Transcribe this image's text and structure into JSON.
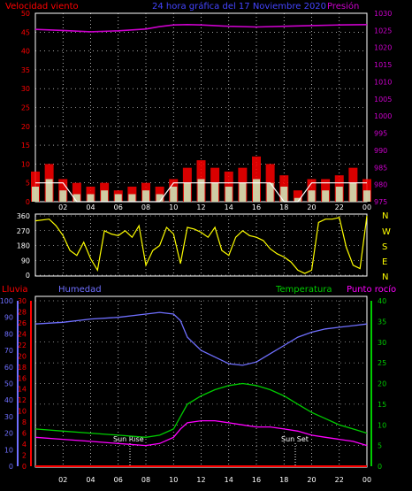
{
  "colors": {
    "background": "#000000",
    "wind_text": "#ff0000",
    "pressure": "#cc00cc",
    "frame": "#ffffff",
    "direction": "#ffff00",
    "humidity": "#6f6fff",
    "temperature": "#00cc00",
    "dewpoint": "#ff00ff",
    "rain": "#ff0000",
    "gust": "#ff0000",
    "wind_avg": "#ccffcc",
    "wind_min": "#ffffff"
  },
  "header": {
    "left": "Velocidad viento",
    "center": "24 hora gráfica del  17 Noviembre 2020",
    "right": "Presión"
  },
  "lower_header": {
    "rain": "Lluvia",
    "humidity": "Humedad",
    "temperature": "Temperatura",
    "dewpoint": "Punto rocío"
  },
  "compass": [
    "N",
    "W",
    "S",
    "E",
    "N"
  ],
  "annotations": {
    "sunrise": "Sun Rise",
    "sunset": "Sun Set"
  },
  "chart_data": [
    {
      "type": "line",
      "panel": "wind_pressure",
      "x_ticks": [
        "02",
        "04",
        "06",
        "08",
        "10",
        "12",
        "14",
        "16",
        "18",
        "20",
        "22",
        "00"
      ],
      "y_left_ticks": [
        "0",
        "5",
        "10",
        "15",
        "20",
        "25",
        "30",
        "35",
        "40",
        "45",
        "50"
      ],
      "y_left_range": [
        0,
        50
      ],
      "y_right_ticks": [
        "975",
        "980",
        "985",
        "990",
        "995",
        "1000",
        "1005",
        "1010",
        "1015",
        "1020",
        "1025",
        "1030"
      ],
      "y_right_range": [
        975,
        1030
      ],
      "series": [
        {
          "axis": "right",
          "x": [
            0,
            2,
            4,
            6,
            8,
            9,
            10,
            11,
            12,
            14,
            16,
            18,
            20,
            22,
            24
          ],
          "y": [
            1025.3,
            1025.0,
            1024.6,
            1024.9,
            1025.4,
            1026.1,
            1026.6,
            1026.7,
            1026.6,
            1026.2,
            1026.0,
            1026.2,
            1026.4,
            1026.6,
            1026.7
          ]
        },
        {
          "axis": "left",
          "x": [
            0,
            1,
            2,
            3,
            4,
            5,
            6,
            7,
            8,
            9,
            10,
            11,
            12,
            13,
            14,
            15,
            16,
            17,
            18,
            19,
            20,
            21,
            22,
            23,
            24
          ],
          "y": [
            8,
            10,
            6,
            5,
            4,
            5,
            3,
            4,
            5,
            4,
            6,
            9,
            11,
            9,
            8,
            9,
            12,
            10,
            7,
            3,
            6,
            6,
            7,
            9,
            6
          ]
        },
        {
          "axis": "left",
          "x": [
            0,
            1,
            2,
            3,
            4,
            5,
            6,
            7,
            8,
            9,
            10,
            11,
            12,
            13,
            14,
            15,
            16,
            17,
            18,
            19,
            20,
            21,
            22,
            23,
            24
          ],
          "y": [
            4,
            6,
            3,
            2,
            2,
            3,
            2,
            2,
            3,
            2,
            4,
            5,
            6,
            5,
            4,
            5,
            6,
            5,
            4,
            1,
            3,
            3,
            4,
            5,
            3
          ]
        },
        {
          "axis": "left",
          "x": [
            0,
            1,
            2,
            3,
            4,
            5,
            6,
            7,
            8,
            9,
            10,
            11,
            12,
            13,
            14,
            15,
            16,
            17,
            18,
            19,
            20,
            21,
            22,
            23,
            24
          ],
          "y": [
            5,
            5,
            5,
            0,
            0,
            0,
            0,
            0,
            0,
            0,
            5,
            5,
            5,
            5,
            5,
            5,
            5,
            5,
            0,
            0,
            5,
            5,
            5,
            5,
            5
          ]
        }
      ]
    },
    {
      "type": "line",
      "panel": "wind_direction",
      "x_ticks": [
        "02",
        "04",
        "06",
        "08",
        "10",
        "12",
        "14",
        "16",
        "18",
        "20",
        "22",
        "00"
      ],
      "y_ticks": [
        "0",
        "90",
        "180",
        "270",
        "360"
      ],
      "y_range": [
        0,
        360
      ],
      "series": [
        {
          "x": [
            0,
            1,
            1.5,
            2,
            2.5,
            3,
            3.5,
            4,
            4.5,
            5,
            5.5,
            6,
            6.5,
            7,
            7.5,
            8,
            8.5,
            9,
            9.5,
            10,
            10.5,
            11,
            11.5,
            12,
            12.5,
            13,
            13.5,
            14,
            14.5,
            15,
            15.5,
            16,
            16.5,
            17,
            17.5,
            18,
            18.5,
            19,
            19.5,
            20,
            20.5,
            21,
            21.5,
            22,
            22.5,
            23,
            23.5,
            24
          ],
          "y": [
            330,
            340,
            300,
            240,
            150,
            120,
            200,
            100,
            30,
            270,
            250,
            240,
            270,
            230,
            300,
            60,
            150,
            180,
            290,
            250,
            70,
            290,
            280,
            260,
            230,
            290,
            150,
            120,
            230,
            270,
            240,
            230,
            210,
            160,
            130,
            110,
            80,
            30,
            10,
            30,
            320,
            340,
            340,
            350,
            170,
            60,
            40,
            360
          ]
        }
      ]
    },
    {
      "type": "line",
      "panel": "temperature_humidity",
      "x_ticks": [
        "02",
        "04",
        "06",
        "08",
        "10",
        "12",
        "14",
        "16",
        "18",
        "20",
        "22",
        "00"
      ],
      "y_humidity_ticks": [
        "0",
        "10",
        "20",
        "30",
        "40",
        "50",
        "60",
        "70",
        "80",
        "90",
        "100"
      ],
      "y_humidity_range": [
        0,
        100
      ],
      "y_rain_ticks": [
        "0",
        "2",
        "4",
        "6",
        "8",
        "10",
        "12",
        "14",
        "16",
        "18",
        "20",
        "22",
        "24",
        "26",
        "28",
        "30"
      ],
      "y_rain_range": [
        0,
        30
      ],
      "y_temp_ticks": [
        "0",
        "5",
        "10",
        "15",
        "20",
        "25",
        "30",
        "35",
        "40"
      ],
      "y_temp_range": [
        0,
        40
      ],
      "series": [
        {
          "x": [
            0,
            2,
            4,
            6,
            8,
            9,
            10,
            10.5,
            11,
            12,
            13,
            14,
            15,
            16,
            17,
            18,
            19,
            20,
            21,
            22,
            23,
            24
          ],
          "y": [
            86,
            87,
            89,
            90,
            92,
            93,
            92,
            88,
            78,
            70,
            66,
            62,
            61,
            63,
            68,
            73,
            78,
            81,
            83,
            84,
            85,
            86
          ]
        },
        {
          "x": [
            0,
            2,
            4,
            6,
            8,
            9,
            10,
            10.5,
            11,
            12,
            13,
            14,
            15,
            16,
            17,
            18,
            19,
            20,
            21,
            22,
            23,
            24
          ],
          "y": [
            9,
            8.5,
            8,
            7.5,
            7,
            7.5,
            9,
            12,
            15,
            17,
            18.5,
            19.5,
            20,
            19.5,
            18.5,
            17,
            15,
            13,
            11.5,
            10,
            9,
            8
          ]
        },
        {
          "x": [
            0,
            2,
            4,
            6,
            8,
            9,
            10,
            10.5,
            11,
            12,
            13,
            14,
            15,
            16,
            17,
            18,
            19,
            20,
            21,
            22,
            23,
            24
          ],
          "y": [
            7,
            6.5,
            6,
            5.5,
            5,
            5.5,
            7,
            9,
            10.5,
            11,
            11,
            10.5,
            10,
            9.5,
            9.5,
            9,
            8.5,
            7.5,
            7,
            6.5,
            6,
            5
          ]
        },
        {
          "x": [
            0,
            24
          ],
          "y": [
            0,
            0
          ]
        }
      ]
    }
  ]
}
